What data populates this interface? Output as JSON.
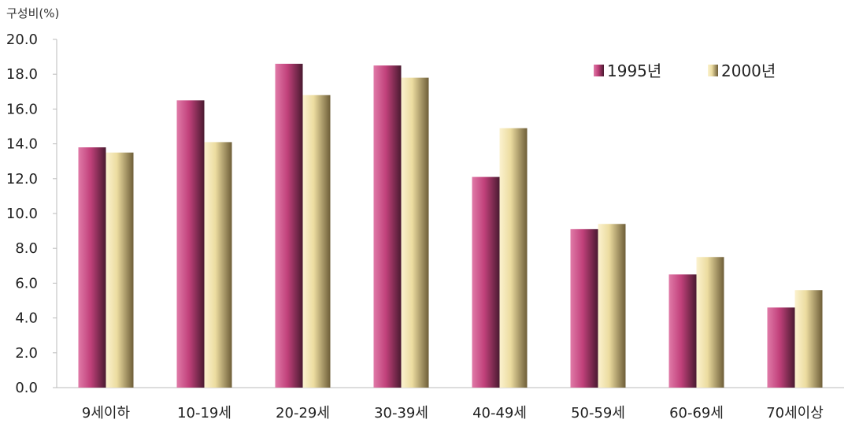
{
  "chart_data": {
    "type": "bar",
    "ylabel": "구성비(%)",
    "categories": [
      "9세이하",
      "10-19세",
      "20-29세",
      "30-39세",
      "40-49세",
      "50-59세",
      "60-69세",
      "70세이상"
    ],
    "series": [
      {
        "name": "1995년",
        "values": [
          13.8,
          16.5,
          18.6,
          18.5,
          12.1,
          9.1,
          6.5,
          4.6
        ],
        "color": "#c0407a"
      },
      {
        "name": "2000년",
        "values": [
          13.5,
          14.1,
          16.8,
          17.8,
          14.9,
          9.4,
          7.5,
          5.6
        ],
        "color": "#ecdca0"
      }
    ],
    "ylim": [
      0,
      20
    ],
    "yticks": [
      "0.0",
      "2.0",
      "4.0",
      "6.0",
      "8.0",
      "10.0",
      "12.0",
      "14.0",
      "16.0",
      "18.0",
      "20.0"
    ],
    "legend_position": "top-right",
    "grid": false
  }
}
